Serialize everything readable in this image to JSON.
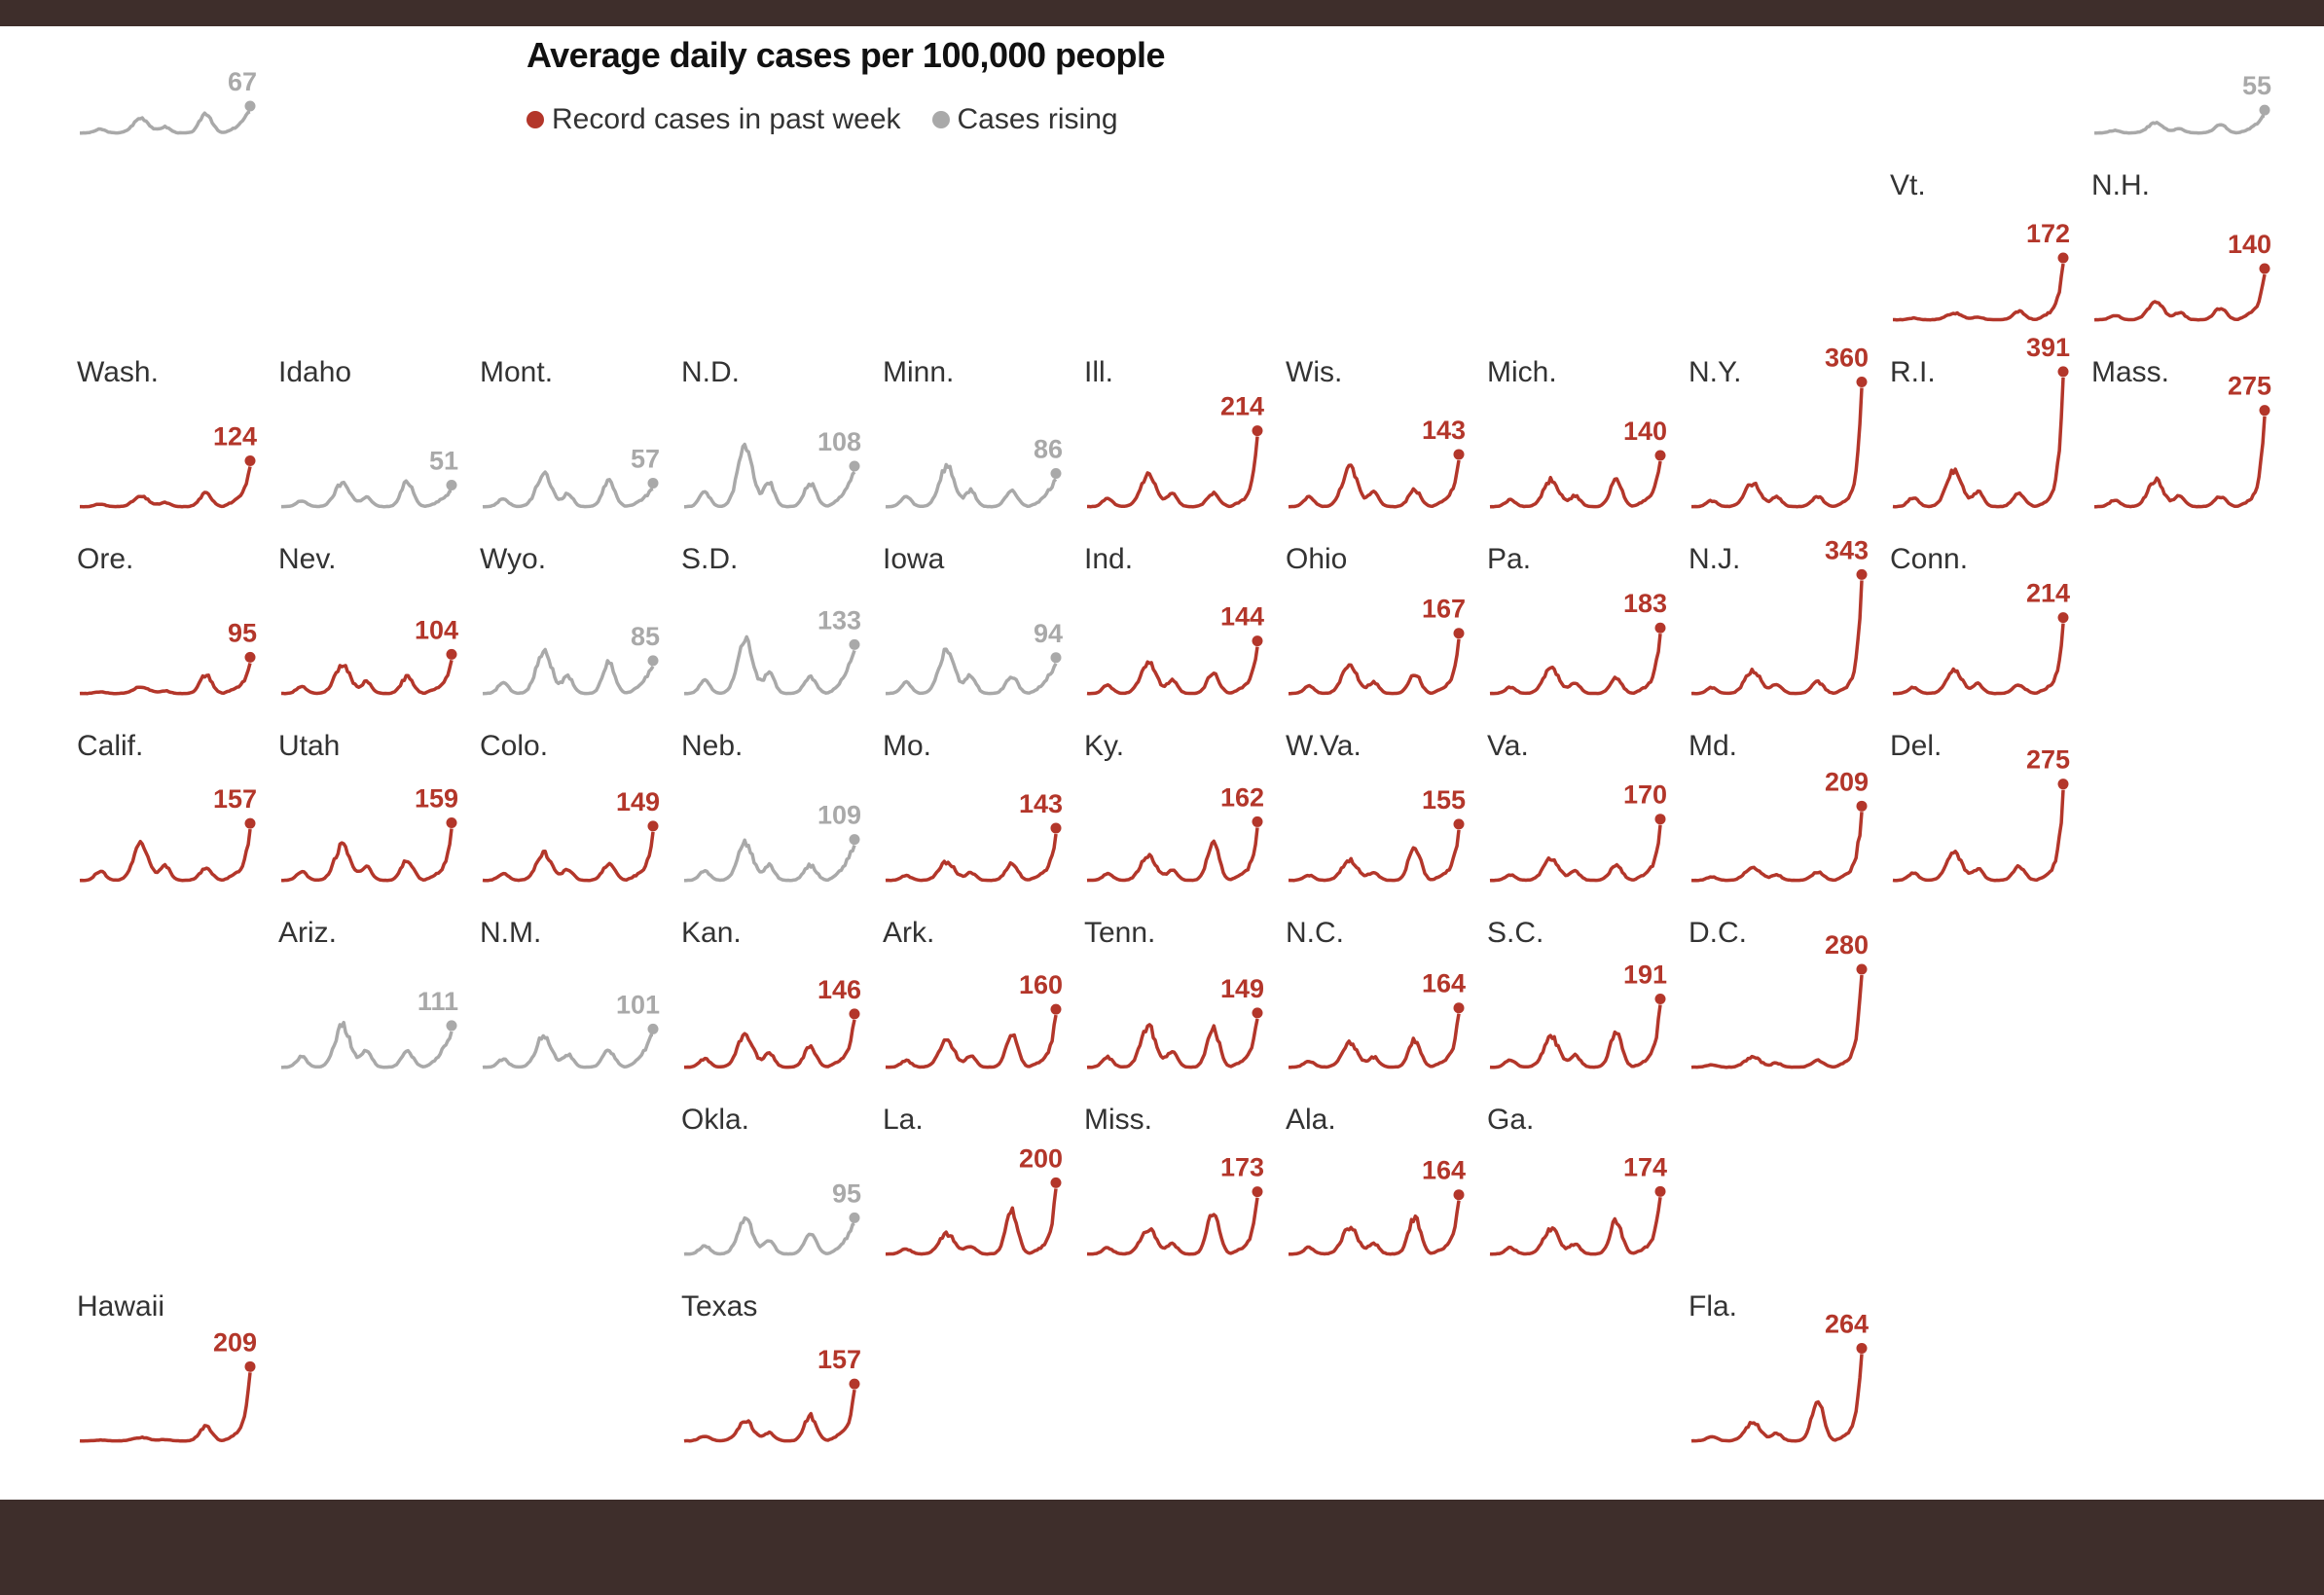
{
  "colors": {
    "record": "#b3362a",
    "rising": "#a9a9a9",
    "frame": "#3e2e2b"
  },
  "chart_data": {
    "type": "line",
    "title": "Average daily cases per 100,000 people",
    "legend": [
      {
        "label": "Record cases in past week",
        "status": "record"
      },
      {
        "label": "Cases rising",
        "status": "rising"
      }
    ],
    "legend_placement": "top",
    "states": [
      {
        "id": "ak",
        "name": "",
        "value": 67,
        "status": "rising",
        "winter": 45,
        "delta": 60
      },
      {
        "id": "me",
        "name": "",
        "value": 55,
        "status": "rising",
        "winter": 30,
        "delta": 25
      },
      {
        "id": "vt",
        "name": "Vt.",
        "value": 172,
        "status": "record",
        "winter": 20,
        "delta": 25
      },
      {
        "id": "nh",
        "name": "N.H.",
        "value": 140,
        "status": "record",
        "winter": 55,
        "delta": 35
      },
      {
        "id": "wa",
        "name": "Wash.",
        "value": 124,
        "status": "record",
        "winter": 30,
        "delta": 40
      },
      {
        "id": "id",
        "name": "Idaho",
        "value": 51,
        "status": "rising",
        "winter": 70,
        "delta": 75
      },
      {
        "id": "mt",
        "name": "Mont.",
        "value": 57,
        "status": "rising",
        "winter": 95,
        "delta": 80
      },
      {
        "id": "nd",
        "name": "N.D.",
        "value": 108,
        "status": "rising",
        "winter": 180,
        "delta": 70
      },
      {
        "id": "mn",
        "name": "Minn.",
        "value": 86,
        "status": "rising",
        "winter": 120,
        "delta": 50
      },
      {
        "id": "il",
        "name": "Ill.",
        "value": 214,
        "status": "record",
        "winter": 95,
        "delta": 40
      },
      {
        "id": "wi",
        "name": "Wis.",
        "value": 143,
        "status": "record",
        "winter": 115,
        "delta": 50
      },
      {
        "id": "mi",
        "name": "Mich.",
        "value": 140,
        "status": "record",
        "winter": 80,
        "delta": 80
      },
      {
        "id": "ny",
        "name": "N.Y.",
        "value": 360,
        "status": "record",
        "winter": 70,
        "delta": 30
      },
      {
        "id": "ri",
        "name": "R.I.",
        "value": 391,
        "status": "record",
        "winter": 110,
        "delta": 40
      },
      {
        "id": "ma",
        "name": "Mass.",
        "value": 275,
        "status": "record",
        "winter": 80,
        "delta": 30
      },
      {
        "id": "or",
        "name": "Ore.",
        "value": 95,
        "status": "record",
        "winter": 20,
        "delta": 55
      },
      {
        "id": "nv",
        "name": "Nev.",
        "value": 104,
        "status": "record",
        "winter": 85,
        "delta": 50
      },
      {
        "id": "wy",
        "name": "Wyo.",
        "value": 85,
        "status": "rising",
        "winter": 130,
        "delta": 95
      },
      {
        "id": "sd",
        "name": "S.D.",
        "value": 133,
        "status": "rising",
        "winter": 160,
        "delta": 50
      },
      {
        "id": "ia",
        "name": "Iowa",
        "value": 94,
        "status": "rising",
        "winter": 135,
        "delta": 50
      },
      {
        "id": "in",
        "name": "Ind.",
        "value": 144,
        "status": "record",
        "winter": 95,
        "delta": 60
      },
      {
        "id": "oh",
        "name": "Ohio",
        "value": 167,
        "status": "record",
        "winter": 85,
        "delta": 60
      },
      {
        "id": "pa",
        "name": "Pa.",
        "value": 183,
        "status": "record",
        "winter": 75,
        "delta": 45
      },
      {
        "id": "nj",
        "name": "N.J.",
        "value": 343,
        "status": "record",
        "winter": 70,
        "delta": 35
      },
      {
        "id": "ct",
        "name": "Conn.",
        "value": 214,
        "status": "record",
        "winter": 70,
        "delta": 25
      },
      {
        "id": "ca",
        "name": "Calif.",
        "value": 157,
        "status": "record",
        "winter": 110,
        "delta": 35
      },
      {
        "id": "ut",
        "name": "Utah",
        "value": 159,
        "status": "record",
        "winter": 105,
        "delta": 60
      },
      {
        "id": "co",
        "name": "Colo.",
        "value": 149,
        "status": "record",
        "winter": 80,
        "delta": 50
      },
      {
        "id": "ne",
        "name": "Neb.",
        "value": 109,
        "status": "rising",
        "winter": 110,
        "delta": 45
      },
      {
        "id": "mo",
        "name": "Mo.",
        "value": 143,
        "status": "record",
        "winter": 55,
        "delta": 50
      },
      {
        "id": "ky",
        "name": "Ky.",
        "value": 162,
        "status": "record",
        "winter": 75,
        "delta": 110
      },
      {
        "id": "wv",
        "name": "W.Va.",
        "value": 155,
        "status": "record",
        "winter": 60,
        "delta": 100
      },
      {
        "id": "va",
        "name": "Va.",
        "value": 170,
        "status": "record",
        "winter": 65,
        "delta": 45
      },
      {
        "id": "md",
        "name": "Md.",
        "value": 209,
        "status": "record",
        "winter": 40,
        "delta": 25
      },
      {
        "id": "de",
        "name": "Del.",
        "value": 275,
        "status": "record",
        "winter": 85,
        "delta": 40
      },
      {
        "id": "az",
        "name": "Ariz.",
        "value": 111,
        "status": "rising",
        "winter": 125,
        "delta": 45
      },
      {
        "id": "nm",
        "name": "N.M.",
        "value": 101,
        "status": "rising",
        "winter": 95,
        "delta": 50
      },
      {
        "id": "ks",
        "name": "Kan.",
        "value": 146,
        "status": "record",
        "winter": 100,
        "delta": 60
      },
      {
        "id": "ar",
        "name": "Ark.",
        "value": 160,
        "status": "record",
        "winter": 80,
        "delta": 100
      },
      {
        "id": "tn",
        "name": "Tenn.",
        "value": 149,
        "status": "record",
        "winter": 120,
        "delta": 120
      },
      {
        "id": "nc",
        "name": "N.C.",
        "value": 164,
        "status": "record",
        "winter": 75,
        "delta": 80
      },
      {
        "id": "sc",
        "name": "S.C.",
        "value": 191,
        "status": "record",
        "winter": 90,
        "delta": 100
      },
      {
        "id": "dc",
        "name": "D.C.",
        "value": 280,
        "status": "record",
        "winter": 30,
        "delta": 20
      },
      {
        "id": "ok",
        "name": "Okla.",
        "value": 95,
        "status": "rising",
        "winter": 100,
        "delta": 60
      },
      {
        "id": "la",
        "name": "La.",
        "value": 200,
        "status": "record",
        "winter": 60,
        "delta": 130
      },
      {
        "id": "ms",
        "name": "Miss.",
        "value": 173,
        "status": "record",
        "winter": 75,
        "delta": 125
      },
      {
        "id": "al",
        "name": "Ala.",
        "value": 164,
        "status": "record",
        "winter": 80,
        "delta": 110
      },
      {
        "id": "ga",
        "name": "Ga.",
        "value": 174,
        "status": "record",
        "winter": 75,
        "delta": 100
      },
      {
        "id": "hi",
        "name": "Hawaii",
        "value": 209,
        "status": "record",
        "winter": 10,
        "delta": 45
      },
      {
        "id": "tx",
        "name": "Texas",
        "value": 157,
        "status": "record",
        "winter": 60,
        "delta": 75
      },
      {
        "id": "fl",
        "name": "Fla.",
        "value": 264,
        "status": "record",
        "winter": 55,
        "delta": 120
      }
    ]
  }
}
